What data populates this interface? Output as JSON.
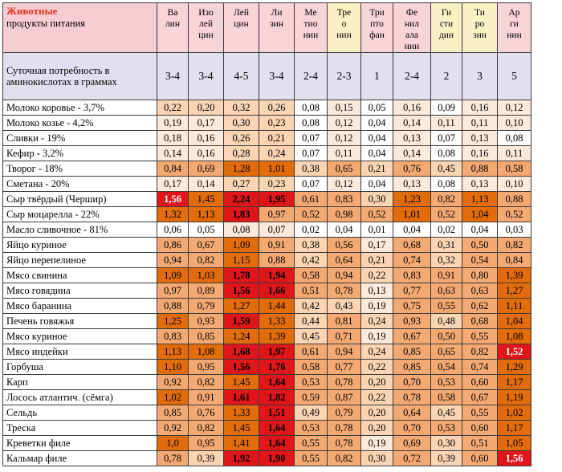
{
  "table": {
    "corner": {
      "title": "Животные",
      "subtitle": "продукты питания"
    },
    "amino_headers": [
      "Ва\nлин",
      "Изо\nлей\nцин",
      "Лей\nцин",
      "Ли\nзин",
      "Ме\nтио\nнин",
      "Тре\nо\nнин",
      "Три\nпто\nфан",
      "Фе\nнил\nала\nнин",
      "Ги\nсти\nдин",
      "Ти\nро\nзин",
      "Ар\nги\nнин"
    ],
    "requirement": {
      "label": "Суточная потребность в\nаминокислотах в граммах",
      "values": [
        "3-4",
        "3-4",
        "4-5",
        "3-4",
        "2-4",
        "2-3",
        "1",
        "2-4",
        "2",
        "3",
        "5"
      ]
    },
    "rows": [
      {
        "food": "Молоко коровье - 3,7%",
        "values": [
          "0,22",
          "0,20",
          "0,32",
          "0,26",
          "0,08",
          "0,15",
          "0,05",
          "0,16",
          "0,09",
          "0,16",
          "0,12"
        ]
      },
      {
        "food": "Молоко козье - 4,2%",
        "values": [
          "0,19",
          "0,17",
          "0,30",
          "0,23",
          "0,08",
          "0,12",
          "0,04",
          "0,14",
          "0,11",
          "0,11",
          "0,10"
        ]
      },
      {
        "food": "Сливки - 19%",
        "values": [
          "0,18",
          "0,16",
          "0,26",
          "0,21",
          "0,07",
          "0,12",
          "0,04",
          "0,13",
          "0,07",
          "0,13",
          "0,08"
        ]
      },
      {
        "food": "Кефир - 3,2%",
        "values": [
          "0,14",
          "0,16",
          "0,28",
          "0,24",
          "0,07",
          "0,11",
          "0,04",
          "0,14",
          "0,08",
          "0,16",
          "0,11"
        ]
      },
      {
        "food": "Творог - 18%",
        "values": [
          "0,84",
          "0,69",
          "1,28",
          "1,01",
          "0,38",
          "0,65",
          "0,21",
          "0,76",
          "0,45",
          "0,88",
          "0,58"
        ]
      },
      {
        "food": "Сметана - 20%",
        "values": [
          "0,17",
          "0,14",
          "0,27",
          "0,23",
          "0,07",
          "0,12",
          "0,04",
          "0,13",
          "0,08",
          "0,13",
          "0,10"
        ]
      },
      {
        "food": "Сыр твёрдый (Чершир)",
        "values": [
          "1,56",
          "1,45",
          "2,24",
          "1,95",
          "0,61",
          "0,83",
          "0,30",
          "1,23",
          "0,82",
          "1,13",
          "0,88"
        ]
      },
      {
        "food": "Сыр моцарелла - 22%",
        "values": [
          "1,32",
          "1,13",
          "1,83",
          "0,97",
          "0,52",
          "0,98",
          "0,52",
          "1,01",
          "0,52",
          "1,04",
          "0,52"
        ]
      },
      {
        "food": "Масло сливочное - 81%",
        "values": [
          "0,06",
          "0,05",
          "0,08",
          "0,07",
          "0,02",
          "0,04",
          "0,01",
          "0,04",
          "0,02",
          "0,04",
          "0,03"
        ]
      },
      {
        "food": "Яйцо куриное",
        "values": [
          "0,86",
          "0,67",
          "1,09",
          "0,91",
          "0,38",
          "0,56",
          "0,17",
          "0,68",
          "0,31",
          "0,50",
          "0,82"
        ]
      },
      {
        "food": "Яйцо перепелиное",
        "values": [
          "0,94",
          "0,82",
          "1,15",
          "0,88",
          "0,42",
          "0,64",
          "0,21",
          "0,74",
          "0,32",
          "0,54",
          "0,84"
        ]
      },
      {
        "food": "Мясо свинина",
        "values": [
          "1,09",
          "1,03",
          "1,78",
          "1,94",
          "0,58",
          "0,94",
          "0,22",
          "0,83",
          "0,91",
          "0,80",
          "1,39"
        ]
      },
      {
        "food": "Мясо говядина",
        "values": [
          "0,97",
          "0,89",
          "1,56",
          "1,66",
          "0,51",
          "0,78",
          "0,13",
          "0,77",
          "0,63",
          "0,63",
          "1,27"
        ]
      },
      {
        "food": "Мясо баранина",
        "values": [
          "0,88",
          "0,79",
          "1,27",
          "1,44",
          "0,42",
          "0,43",
          "0,19",
          "0,75",
          "0,55",
          "0,62",
          "1,11"
        ]
      },
      {
        "food": "Печень говяжья",
        "values": [
          "1,25",
          "0,93",
          "1,59",
          "1,33",
          "0,44",
          "0,81",
          "0,24",
          "0,93",
          "0,48",
          "0,68",
          "1,04"
        ]
      },
      {
        "food": "Мясо куриное",
        "values": [
          "0,83",
          "0,85",
          "1,24",
          "1,39",
          "0,45",
          "0,71",
          "0,19",
          "0,67",
          "0,50",
          "0,55",
          "1,08"
        ]
      },
      {
        "food": "Мясо индейки",
        "values": [
          "1,13",
          "1,08",
          "1,68",
          "1,97",
          "0,61",
          "0,94",
          "0,24",
          "0,85",
          "0,65",
          "0,82",
          "1,52"
        ]
      },
      {
        "food": "Горбуша",
        "values": [
          "1,10",
          "0,95",
          "1,56",
          "1,76",
          "0,58",
          "0,77",
          "0,22",
          "0,85",
          "0,54",
          "0,74",
          "1,29"
        ]
      },
      {
        "food": "Карп",
        "values": [
          "0,92",
          "0,82",
          "1,45",
          "1,64",
          "0,53",
          "0,78",
          "0,20",
          "0,70",
          "0,53",
          "0,60",
          "1,17"
        ]
      },
      {
        "food": "Лосось атлантич. (сёмга)",
        "values": [
          "1,02",
          "0,91",
          "1,61",
          "1,82",
          "0,59",
          "0,87",
          "0,22",
          "0,78",
          "0,58",
          "0,67",
          "1,19"
        ]
      },
      {
        "food": "Сельдь",
        "values": [
          "0,85",
          "0,76",
          "1,33",
          "1,51",
          "0,49",
          "0,79",
          "0,20",
          "0,64",
          "0,45",
          "0,55",
          "1,02"
        ]
      },
      {
        "food": "Треска",
        "values": [
          "0,92",
          "0,82",
          "1,45",
          "1,64",
          "0,53",
          "0,78",
          "0,20",
          "0,70",
          "0,53",
          "0,60",
          "1,17"
        ]
      },
      {
        "food": "Креветки филе",
        "values": [
          "1,0",
          "0,95",
          "1,41",
          "1,64",
          "0,55",
          "0,78",
          "0,19",
          "0,69",
          "0,30",
          "0,51",
          "1,05"
        ]
      },
      {
        "food": "Кальмар филе",
        "values": [
          "0,78",
          "0,39",
          "1,92",
          "1,90",
          "0,55",
          "0,82",
          "0,30",
          "0,72",
          "0,39",
          "0,60",
          "1,56"
        ]
      }
    ],
    "colors": {
      "white": "#ffffff",
      "lightest": "#fde9d9",
      "light": "#fbd4b4",
      "medium": "#f5a972",
      "dark": "#e26b0a",
      "red": "#e0161b"
    },
    "emphasized_columns": [
      2,
      3
    ]
  }
}
